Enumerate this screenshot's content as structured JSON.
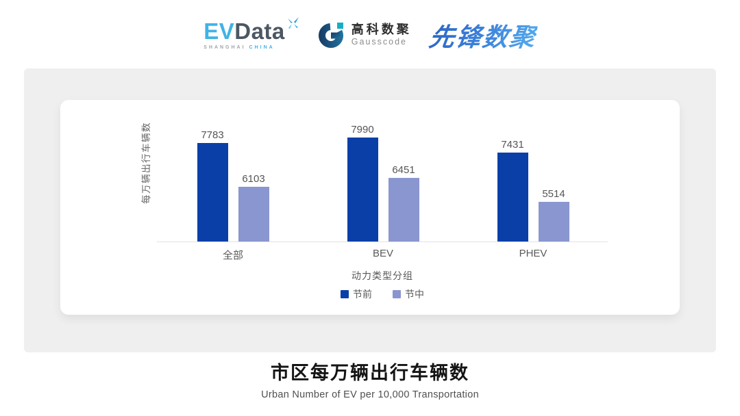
{
  "header": {
    "evdata": {
      "ev": "EV",
      "data": "Data",
      "sub_left": "SHANGHAI",
      "sub_right": "CHINA"
    },
    "gausscode": {
      "cn": "高科数聚",
      "en": "Gausscode"
    },
    "pioneer": {
      "text": "先锋数聚"
    }
  },
  "chart_data": {
    "type": "bar",
    "title": "市区每万辆出行车辆数",
    "subtitle": "Urban Number of EV per 10,000 Transportation",
    "xlabel": "动力类型分组",
    "ylabel": "每万辆出行车辆数",
    "categories": [
      "全部",
      "BEV",
      "PHEV"
    ],
    "series": [
      {
        "name": "节前",
        "color": "#0a3fa8",
        "values": [
          7783,
          7990,
          7431
        ]
      },
      {
        "name": "节中",
        "color": "#8a96cf",
        "values": [
          6103,
          6451,
          5514
        ]
      }
    ],
    "value_labels": true,
    "baseline_value": 4000,
    "ylim": [
      4000,
      9400
    ],
    "grid": false,
    "legend_position": "bottom"
  },
  "colors": {
    "bar_dark": "#0a3fa8",
    "bar_light": "#8a96cf",
    "panel_bg": "#efefef",
    "axis_line": "#e2e2e2",
    "label_text": "#595959"
  }
}
